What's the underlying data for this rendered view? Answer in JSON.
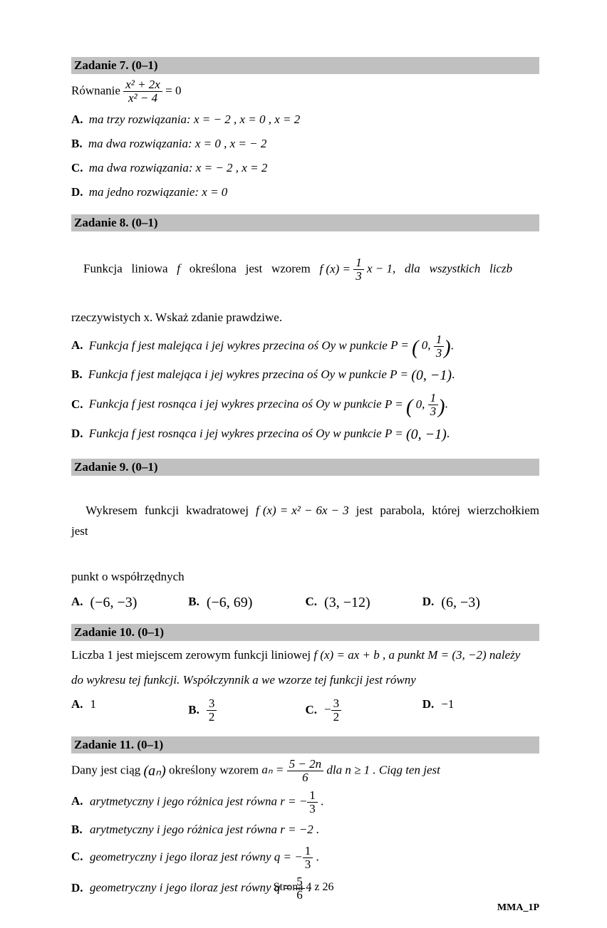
{
  "page": {
    "footer_center": "Strona 4 z 26",
    "footer_right": "MMA_1P"
  },
  "colors": {
    "header_bg": "#c0c0c0",
    "text": "#000000",
    "page_bg": "#ffffff"
  },
  "typography": {
    "font_family": "Times New Roman",
    "base_fontsize_pt": 12
  },
  "t7": {
    "header": "Zadanie 7. (0–1)",
    "stem_pre": "Równanie  ",
    "eqn_num": "x² + 2x",
    "eqn_den": "x² − 4",
    "eqn_rhs": " = 0",
    "A_lbl": "A.",
    "A": " ma trzy rozwiązania: x = − 2 , x = 0 , x = 2",
    "B_lbl": "B.",
    "B": " ma dwa rozwiązania: x = 0 , x = − 2",
    "C_lbl": "C.",
    "C": " ma dwa rozwiązania: x = − 2 , x = 2",
    "D_lbl": "D.",
    "D": " ma jedno rozwiązanie: x = 0"
  },
  "t8": {
    "header": "Zadanie 8. (0–1)",
    "stem1_a": "Funkcja   liniowa   ",
    "stem1_f": "f",
    "stem1_b": "   określona   jest   wzorem   ",
    "fx": "f (x) = ",
    "frac_num": "1",
    "frac_den": "3",
    "stem1_c": " x − 1,   dla   wszystkich   liczb",
    "stem2": "rzeczywistych x. Wskaż zdanie prawdziwe.",
    "A_lbl": "A.",
    "A_pre": " Funkcja  f  jest malejąca i jej wykres przecina oś  Oy  w punkcie  ",
    "B_lbl": "B.",
    "B_pre": " Funkcja  f  jest malejąca i jej wykres przecina oś  Oy  w punkcie  ",
    "C_lbl": "C.",
    "C_pre": " Funkcja  f  jest rosnąca i jej wykres przecina oś  Oy  w punkcie  ",
    "D_lbl": "D.",
    "D_pre": " Funkcja  f  jest rosnąca i jej wykres przecina oś  Oy  w punkcie  ",
    "P_eq": "P = ",
    "P_zero": "0, ",
    "P_num": "1",
    "P_den": "3",
    "P_plain": "(0, −1)",
    "dot": "."
  },
  "t9": {
    "header": "Zadanie 9. (0–1)",
    "stem_a": "Wykresem  funkcji  kwadratowej  ",
    "fx": "f (x) = x² − 6x − 3",
    "stem_b": "  jest  parabola,  której  wierzchołkiem  jest",
    "stem_c": "punkt o współrzędnych",
    "A_lbl": "A.",
    "A": "(−6, −3)",
    "B_lbl": "B.",
    "B": "(−6, 69)",
    "C_lbl": "C.",
    "C": "(3, −12)",
    "D_lbl": "D.",
    "D": "(6, −3)"
  },
  "t10": {
    "header": "Zadanie 10. (0–1)",
    "stem_a": "Liczba 1 jest miejscem zerowym funkcji liniowej  ",
    "fx": "f (x) = ax + b",
    "stem_b": " , a punkt  M = (3, −2)  należy",
    "stem_c": "do wykresu tej funkcji. Współczynnik a we wzorze tej funkcji jest równy",
    "A_lbl": "A.",
    "A": "1",
    "B_lbl": "B.",
    "B_num": "3",
    "B_den": "2",
    "C_lbl": "C.",
    "C_pre": "−",
    "C_num": "3",
    "C_den": "2",
    "D_lbl": "D.",
    "D": "−1"
  },
  "t11": {
    "header": "Zadanie 11. (0–1)",
    "stem_a": "Dany jest ciąg ",
    "an": "(aₙ)",
    "stem_b": " określony wzorem  ",
    "an_eq": "aₙ = ",
    "frac_num": "5 − 2n",
    "frac_den": "6",
    "stem_c": "  dla  n ≥ 1 . Ciąg ten jest",
    "A_lbl": "A.",
    "A_pre": "arytmetyczny i jego różnica jest równa  r = −",
    "A_num": "1",
    "A_den": "3",
    "A_post": " .",
    "B_lbl": "B.",
    "B": "arytmetyczny i jego różnica jest równa  r = −2 .",
    "C_lbl": "C.",
    "C_pre": "geometryczny i jego iloraz jest równy  q = −",
    "C_num": "1",
    "C_den": "3",
    "C_post": " .",
    "D_lbl": "D.",
    "D_pre": "geometryczny i jego iloraz jest równy  q = ",
    "D_num": "5",
    "D_den": "6",
    "D_post": " ."
  }
}
